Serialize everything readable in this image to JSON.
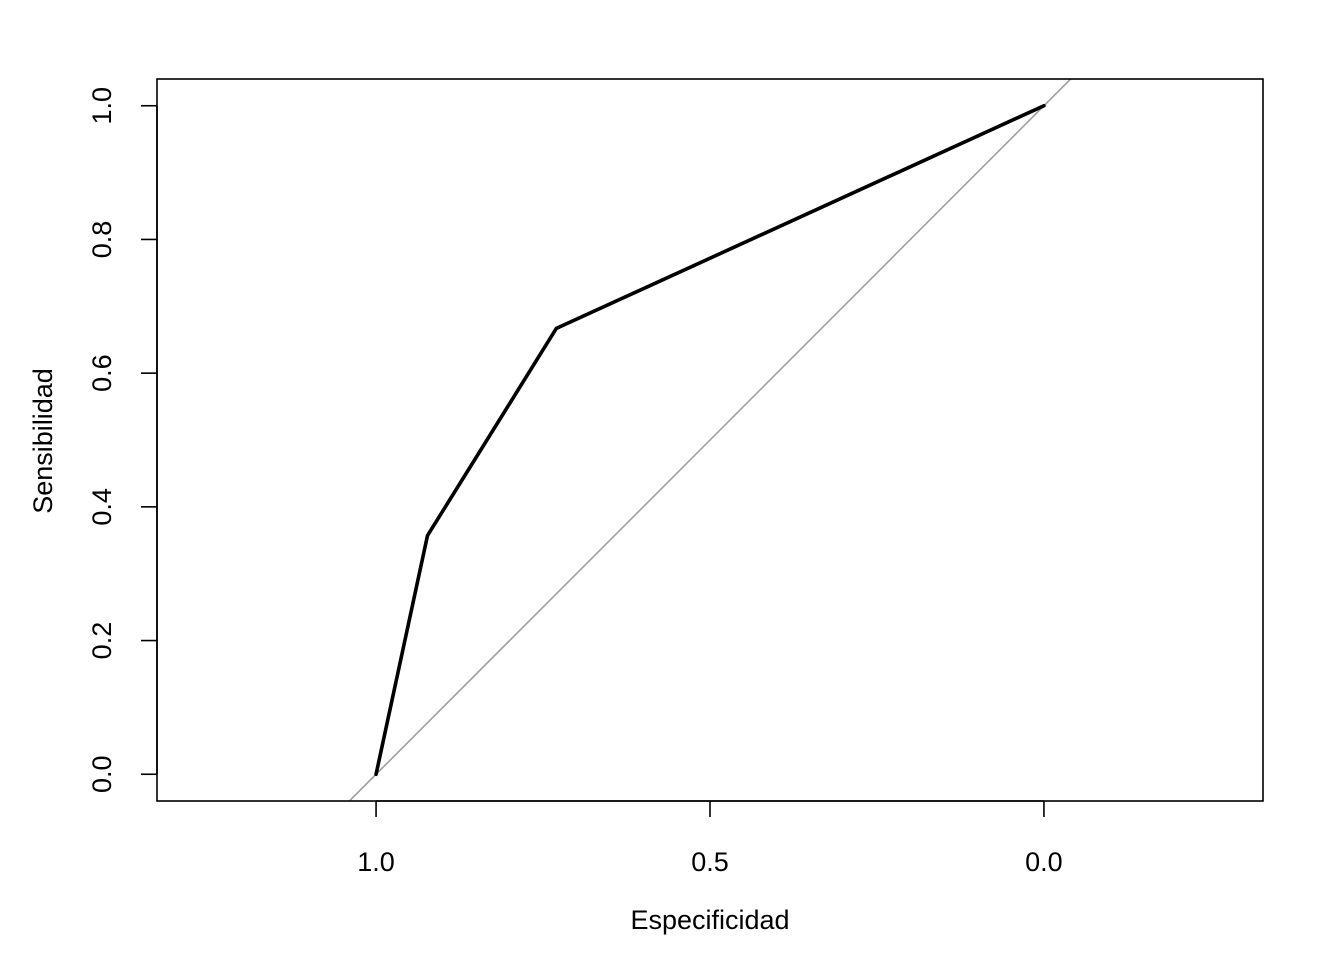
{
  "chart_data": {
    "type": "line",
    "xlabel": "Especificidad",
    "ylabel": "Sensibilidad",
    "x_reversed": true,
    "xlim": [
      1.328,
      -0.328
    ],
    "ylim": [
      -0.04,
      1.04
    ],
    "x_ticks": [
      1.0,
      0.5,
      0.0
    ],
    "x_tick_labels": [
      "1.0",
      "0.5",
      "0.0"
    ],
    "y_ticks": [
      0.0,
      0.2,
      0.4,
      0.6,
      0.8,
      1.0
    ],
    "y_tick_labels": [
      "0.0",
      "0.2",
      "0.4",
      "0.6",
      "0.8",
      "1.0"
    ],
    "series": [
      {
        "color": "#000000",
        "points": [
          {
            "x": 1.0,
            "y": 0.0
          },
          {
            "x": 0.923,
            "y": 0.357
          },
          {
            "x": 0.73,
            "y": 0.667
          },
          {
            "x": 0.0,
            "y": 1.0
          }
        ]
      }
    ],
    "reference_line": {
      "color": "#a0a0a0",
      "description_points": [
        {
          "x": 1.0,
          "y": 0.0
        },
        {
          "x": 0.0,
          "y": 1.0
        }
      ]
    },
    "grid": false
  }
}
